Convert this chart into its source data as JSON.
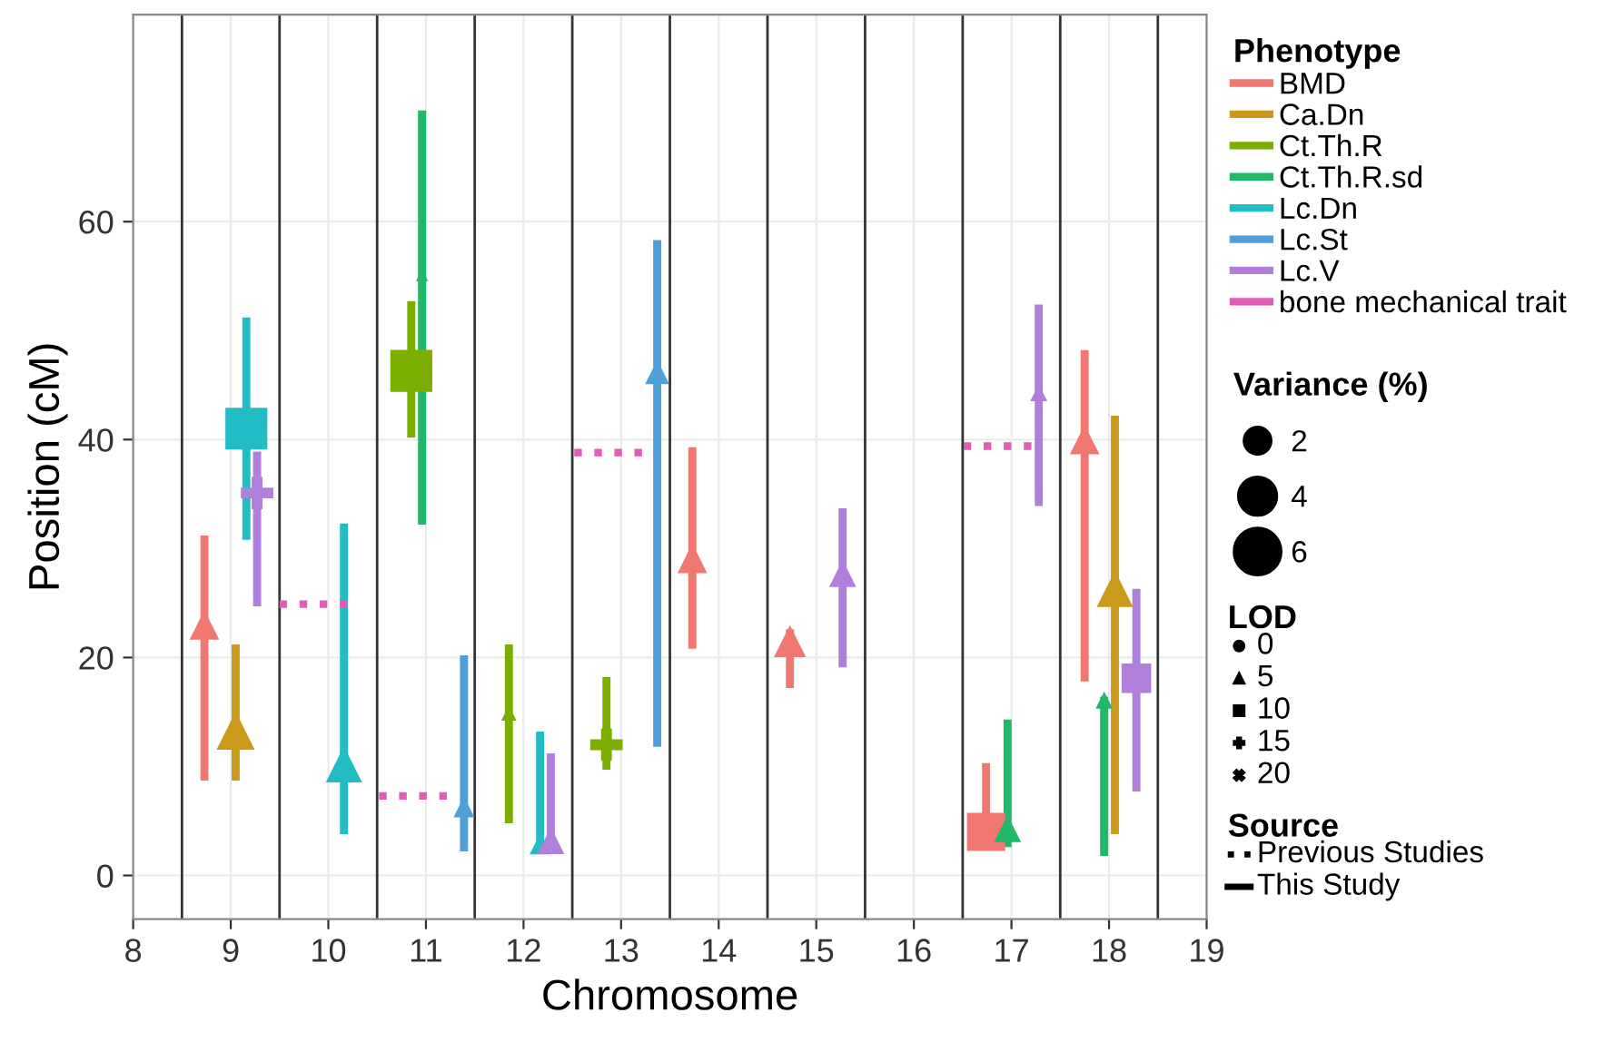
{
  "chart_data": {
    "type": "scatter",
    "xlabel": "Chromosome",
    "ylabel": "Position (cM)",
    "legend_title": "Phenotype",
    "legend": "right",
    "grid": true,
    "xlim": [
      8,
      19
    ],
    "xticks": [
      8,
      9,
      10,
      11,
      12,
      13,
      14,
      15,
      16,
      17,
      18,
      19
    ],
    "ylim": [
      -4,
      79
    ],
    "yticks": [
      0,
      20,
      40,
      60
    ],
    "ref_lines": [
      {
        "axis": "x",
        "value": 8.5,
        "color": "#333333"
      },
      {
        "axis": "x",
        "value": 9.5,
        "color": "#333333"
      },
      {
        "axis": "x",
        "value": 10.5,
        "color": "#333333"
      },
      {
        "axis": "x",
        "value": 11.5,
        "color": "#333333"
      },
      {
        "axis": "x",
        "value": 12.5,
        "color": "#333333"
      },
      {
        "axis": "x",
        "value": 13.5,
        "color": "#333333"
      },
      {
        "axis": "x",
        "value": 14.5,
        "color": "#333333"
      },
      {
        "axis": "x",
        "value": 15.5,
        "color": "#333333"
      },
      {
        "axis": "x",
        "value": 16.5,
        "color": "#333333"
      },
      {
        "axis": "x",
        "value": 17.5,
        "color": "#333333"
      },
      {
        "axis": "x",
        "value": 18.5,
        "color": "#333333"
      }
    ],
    "size_legend": [
      2,
      4,
      6
    ],
    "annotations": [
      "Variance (%)",
      "LOD",
      "0",
      "5",
      "10",
      "15",
      "20",
      "Source",
      "Previous Studies",
      "This Study"
    ],
    "series": [
      {
        "name": "BMD",
        "color": "#f07870",
        "marker": "triangle",
        "x": [
          8.73,
          13.73,
          14.73,
          17.75
        ],
        "values": [
          23,
          29.1,
          21.5,
          40
        ],
        "errors": [
          [
            8.7,
            31.2
          ],
          [
            20.8,
            39.3
          ],
          [
            17.2,
            22.6
          ],
          [
            17.8,
            48.2
          ]
        ],
        "sizes": [
          1.5,
          1.5,
          1.75,
          1.5
        ]
      },
      {
        "color": "#f07870",
        "marker": "square",
        "x": [
          16.74
        ],
        "values": [
          4
        ],
        "errors": [
          [
            2.6,
            10.3
          ]
        ],
        "sizes": [
          5
        ]
      },
      {
        "name": "Ca.Dn",
        "color": "#cc9a1a",
        "marker": "triangle",
        "x": [
          9.05,
          18.06
        ],
        "values": [
          13.3,
          26.3
        ],
        "errors": [
          [
            8.7,
            21.2
          ],
          [
            3.8,
            42.2
          ]
        ],
        "sizes": [
          2.5,
          2.25
        ]
      },
      {
        "name": "Ct.Th.R",
        "color": "#7cae00",
        "marker": "square",
        "x": [
          10.85
        ],
        "values": [
          46.3
        ],
        "errors": [
          [
            40.2,
            52.7
          ]
        ],
        "sizes": [
          6
        ]
      },
      {
        "color": "#7cae00",
        "marker": "triangle",
        "x": [
          11.85
        ],
        "values": [
          14.9
        ],
        "errors": [
          [
            4.8,
            21.2
          ]
        ],
        "sizes": [
          0.4
        ]
      },
      {
        "color": "#7cae00",
        "marker": "cross",
        "x": [
          12.85
        ],
        "values": [
          12
        ],
        "errors": [
          [
            9.7,
            18.2
          ]
        ],
        "sizes": [
          2
        ]
      },
      {
        "name": "Ct.Th.R.sd",
        "color": "#22b86a",
        "marker": "triangle",
        "x": [
          10.96,
          16.96,
          17.95
        ],
        "values": [
          55.1,
          4.3,
          16.1
        ],
        "errors": [
          [
            32.2,
            70.2
          ],
          [
            2.6,
            14.3
          ],
          [
            1.8,
            16.4
          ]
        ],
        "sizes": [
          0.25,
          1.25,
          0.5
        ]
      },
      {
        "name": "Lc.Dn",
        "color": "#22bcc4",
        "marker": "square",
        "x": [
          9.16
        ],
        "values": [
          41
        ],
        "errors": [
          [
            30.8,
            51.2
          ]
        ],
        "sizes": [
          6
        ]
      },
      {
        "color": "#22bcc4",
        "marker": "triangle",
        "x": [
          10.16,
          12.17
        ],
        "values": [
          10.2,
          2.9
        ],
        "errors": [
          [
            3.8,
            32.3
          ],
          [
            2.6,
            13.2
          ]
        ],
        "sizes": [
          2.25,
          0.75
        ]
      },
      {
        "name": "Lc.St",
        "color": "#4fa0d8",
        "marker": "triangle",
        "x": [
          11.39,
          13.37
        ],
        "values": [
          6.3,
          46.2
        ],
        "errors": [
          [
            2.2,
            20.2
          ],
          [
            11.8,
            58.3
          ]
        ],
        "sizes": [
          0.75,
          1
        ]
      },
      {
        "name": "Lc.V",
        "color": "#b07fdc",
        "marker": "triangle",
        "x": [
          12.28,
          15.27,
          17.28
        ],
        "values": [
          3.2,
          27.7,
          44.3
        ],
        "errors": [
          [
            3.2,
            11.2
          ],
          [
            19.1,
            33.7
          ],
          [
            33.9,
            52.4
          ]
        ],
        "sizes": [
          1.25,
          1.25,
          0.5
        ]
      },
      {
        "color": "#b07fdc",
        "marker": "cross",
        "x": [
          9.27
        ],
        "values": [
          35.1
        ],
        "errors": [
          [
            24.7,
            38.9
          ]
        ],
        "sizes": [
          2
        ]
      },
      {
        "color": "#b07fdc",
        "marker": "square",
        "x": [
          18.28
        ],
        "values": [
          18.1
        ],
        "errors": [
          [
            7.7,
            26.3
          ]
        ],
        "sizes": [
          3
        ]
      },
      {
        "name": "bone mechanical trait",
        "type": "line",
        "line_style": "dotted",
        "color": "#e05cb6",
        "x": [
          9.5,
          10.25,
          null,
          10.52,
          11.26,
          null,
          12.52,
          13.23,
          null,
          16.51,
          17.24
        ],
        "values": [
          24.9,
          24.9,
          null,
          7.3,
          7.3,
          null,
          38.8,
          38.8,
          null,
          39.4,
          39.4
        ]
      }
    ]
  }
}
